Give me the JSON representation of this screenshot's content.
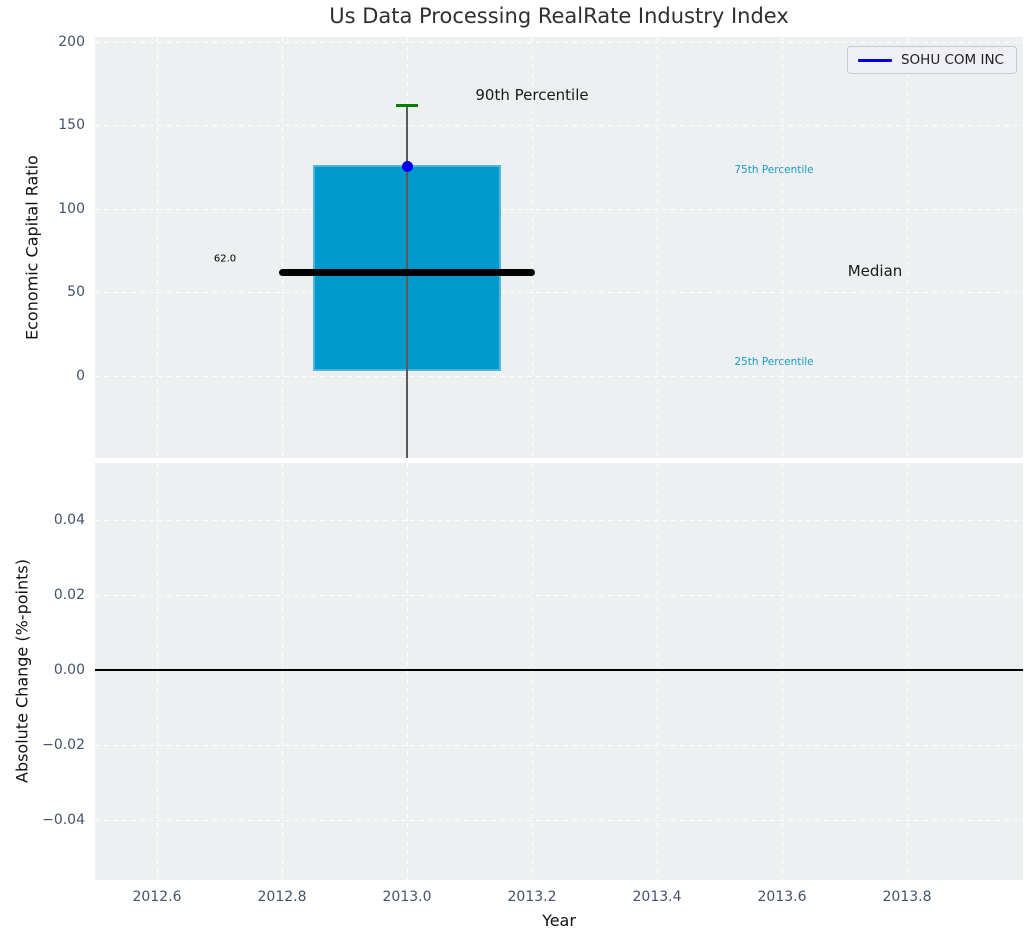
{
  "title": "Us Data Processing RealRate Industry Index",
  "legend": {
    "label": "SOHU COM INC"
  },
  "annotations": {
    "p90": "90th Percentile",
    "median_value_label": "62.0",
    "p75": "75th Percentile",
    "median": "Median",
    "p25": "25th Percentile"
  },
  "axes": {
    "top": {
      "ylabel": "Economic Capital Ratio"
    },
    "bottom": {
      "ylabel": "Absolute Change (%-points)",
      "xlabel": "Year"
    }
  },
  "colors": {
    "box_fill": "#0099cc",
    "box_edge": "#4fb3da",
    "median_line": "#000000",
    "whisker": "#5a5a5a",
    "whisker_cap": "#008000",
    "company_point": "#0000ee",
    "legend_line": "#0000ee",
    "percentile_text": "#1c9bc7",
    "tick_text": "#44536b",
    "axes_bg": "#ecf0f1"
  },
  "chart_data": [
    {
      "type": "boxplot",
      "title": "Us Data Processing RealRate Industry Index",
      "ylabel": "Economic Capital Ratio",
      "legend": [
        "SOHU COM INC"
      ],
      "x": 2013.0,
      "box_width": 0.3,
      "percentiles": {
        "p90": 162,
        "p75": 126,
        "median": 62.0,
        "p25": 3
      },
      "whisker_low": -49,
      "whisker_low_clipped": true,
      "company_point": {
        "name": "SOHU COM INC",
        "x": 2013.0,
        "y": 125
      },
      "median_label": "62.0",
      "annotations": [
        "90th Percentile",
        "75th Percentile",
        "Median",
        "25th Percentile"
      ],
      "xticks": [
        2012.6,
        2012.8,
        2013.0,
        2013.2,
        2013.4,
        2013.6,
        2013.8
      ],
      "xtick_labels": [
        "2012.6",
        "2012.8",
        "2013.0",
        "2013.2",
        "2013.4",
        "2013.6",
        "2013.8"
      ],
      "yticks": [
        0,
        50,
        100,
        150,
        200
      ],
      "ytick_labels": [
        "0",
        "50",
        "100",
        "150",
        "200"
      ],
      "xlim": [
        2012.5,
        2013.99
      ],
      "ylim": [
        -49,
        203
      ],
      "grid": "white dashed on light gray background",
      "legend_position": "upper right"
    },
    {
      "type": "line",
      "ylabel": "Absolute Change (%-points)",
      "xlabel": "Year",
      "yticks": [
        0.04,
        0.02,
        0.0,
        -0.02,
        -0.04
      ],
      "ytick_labels": [
        "0.04",
        "0.02",
        "0.00",
        "−0.02",
        "−0.04"
      ],
      "xticks": [
        2012.6,
        2012.8,
        2013.0,
        2013.2,
        2013.4,
        2013.6,
        2013.8
      ],
      "xtick_labels": [
        "2012.6",
        "2012.8",
        "2013.0",
        "2013.2",
        "2013.4",
        "2013.6",
        "2013.8"
      ],
      "ylim": [
        -0.056,
        0.055
      ],
      "zero_line": 0.0,
      "series": [
        {
          "name": "SOHU COM INC",
          "x": [],
          "y": []
        }
      ]
    }
  ]
}
